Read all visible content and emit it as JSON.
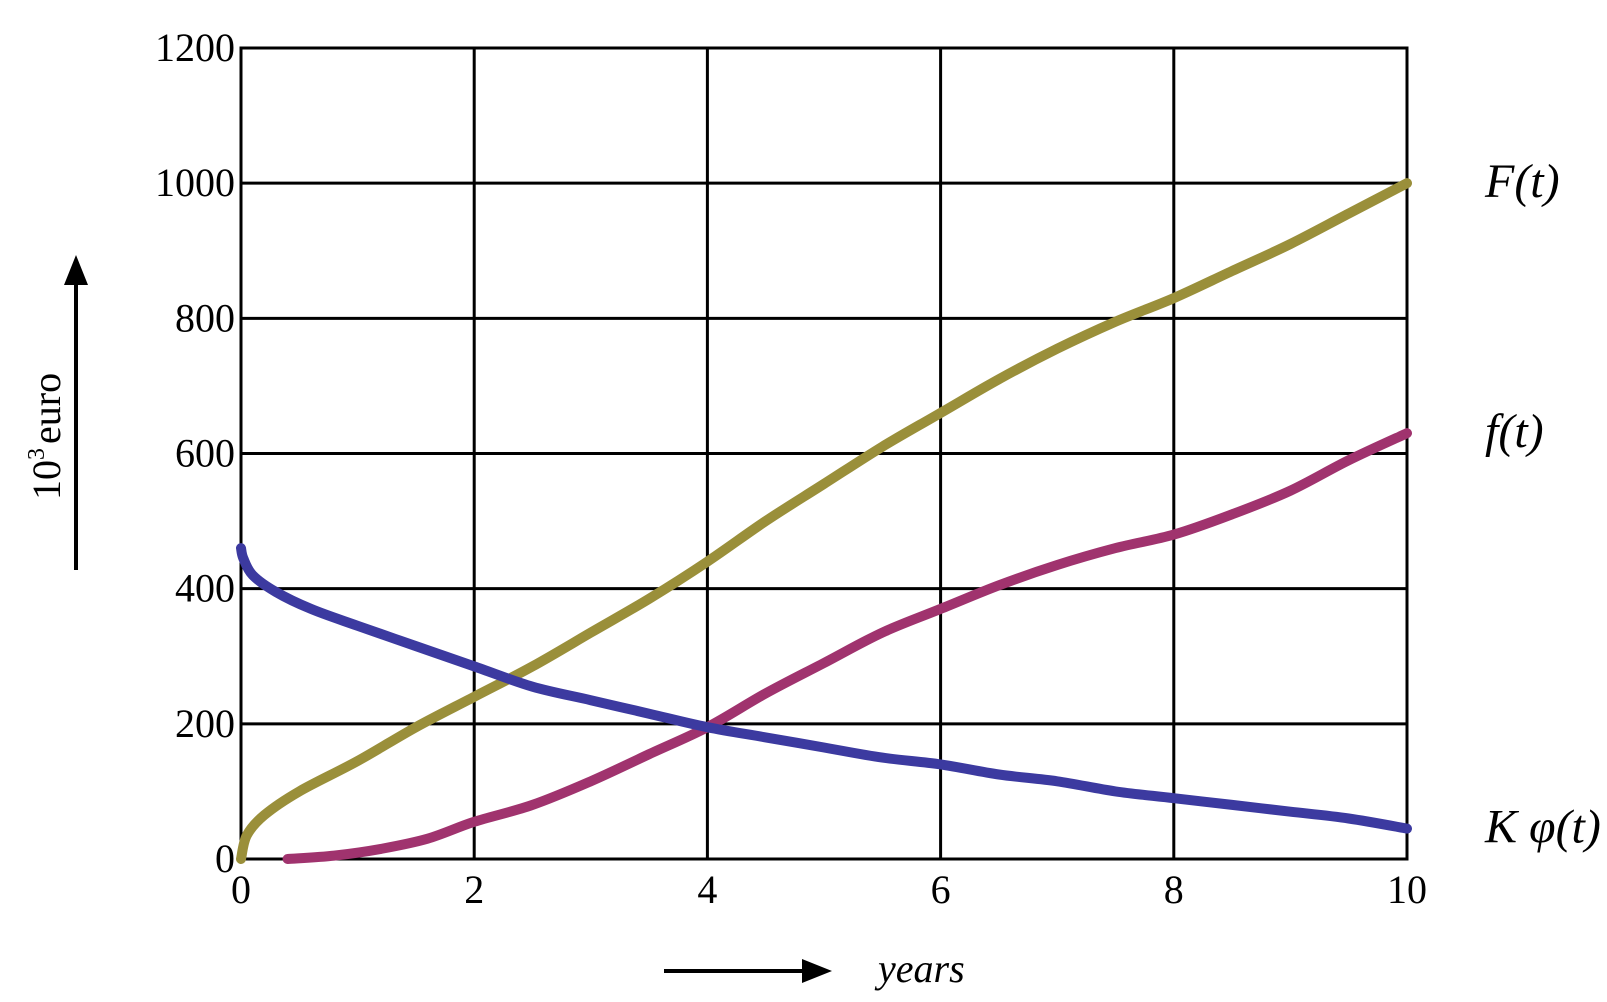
{
  "chart_data": {
    "type": "line",
    "xlabel": "years",
    "ylabel": "10³ euro",
    "ylabel_base": "10",
    "ylabel_exponent": "3",
    "ylabel_unit": "euro",
    "xlim": [
      0,
      10
    ],
    "ylim": [
      0,
      1200
    ],
    "x_ticks": [
      0,
      2,
      4,
      6,
      8,
      10
    ],
    "x_tick_labels": [
      "0",
      "2",
      "4",
      "6",
      "8",
      "10"
    ],
    "y_ticks": [
      0,
      200,
      400,
      600,
      800,
      1000,
      1200
    ],
    "y_tick_labels": [
      "0",
      "200",
      "400",
      "600",
      "800",
      "1000",
      "1200"
    ],
    "grid": true,
    "series": [
      {
        "name": "F(t)",
        "color": "#9a8f3a",
        "x": [
          0,
          0.05,
          0.2,
          0.5,
          1,
          1.5,
          2,
          2.5,
          3,
          3.5,
          4,
          4.5,
          5,
          5.5,
          6,
          6.5,
          7,
          7.5,
          8,
          8.5,
          9,
          9.5,
          10
        ],
        "y": [
          0,
          35,
          65,
          100,
          145,
          195,
          240,
          285,
          335,
          385,
          440,
          500,
          555,
          610,
          660,
          710,
          755,
          795,
          830,
          870,
          910,
          955,
          1000
        ]
      },
      {
        "name": "f(t)",
        "color": "#a0336e",
        "x": [
          0.4,
          0.8,
          1.2,
          1.6,
          2,
          2.5,
          3,
          3.5,
          4,
          4.5,
          5,
          5.5,
          6,
          6.5,
          7,
          7.5,
          8,
          8.5,
          9,
          9.5,
          10
        ],
        "y": [
          0,
          5,
          15,
          30,
          55,
          80,
          115,
          155,
          195,
          245,
          290,
          335,
          370,
          405,
          435,
          460,
          480,
          510,
          545,
          590,
          630
        ]
      },
      {
        "name": "K φ(t)",
        "color": "#3c3aa0",
        "x": [
          0,
          0.02,
          0.1,
          0.3,
          0.6,
          1,
          1.5,
          2,
          2.5,
          3,
          3.5,
          4,
          4.5,
          5,
          5.5,
          6,
          6.5,
          7,
          7.5,
          8,
          8.5,
          9,
          9.5,
          10
        ],
        "y": [
          460,
          445,
          420,
          395,
          370,
          345,
          315,
          285,
          255,
          235,
          215,
          195,
          180,
          165,
          150,
          140,
          125,
          115,
          100,
          90,
          80,
          70,
          60,
          45
        ]
      }
    ]
  }
}
